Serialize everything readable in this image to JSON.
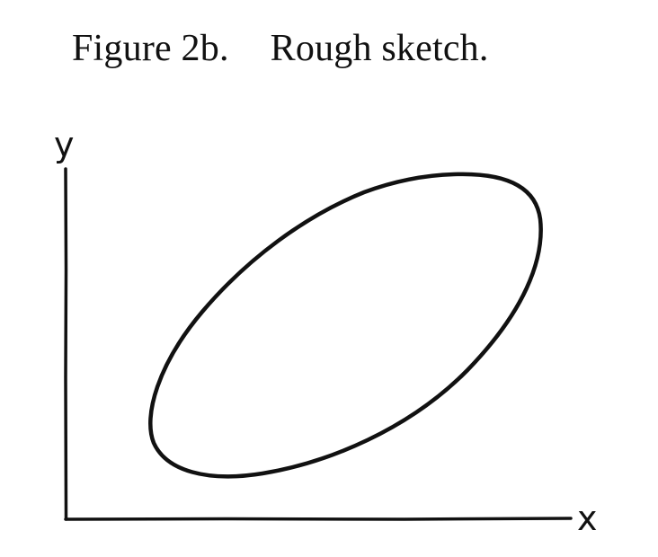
{
  "figure": {
    "number_label": "Figure 2b.",
    "title": "Rough sketch."
  },
  "axes": {
    "x_label": "x",
    "y_label": "y"
  },
  "colors": {
    "ink": "#111111",
    "background": "#ffffff"
  }
}
